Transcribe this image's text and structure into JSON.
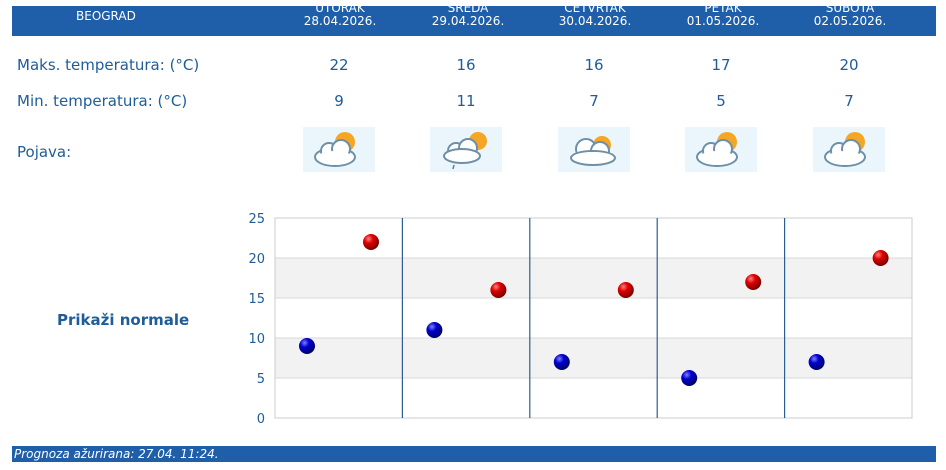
{
  "header": {
    "city": "BEOGRAD",
    "days": [
      {
        "name": "UTORAK",
        "date": "28.04.2026."
      },
      {
        "name": "SREDA",
        "date": "29.04.2026."
      },
      {
        "name": "ČETVRTAK",
        "date": "30.04.2026."
      },
      {
        "name": "PETAK",
        "date": "01.05.2026."
      },
      {
        "name": "SUBOTA",
        "date": "02.05.2026."
      }
    ]
  },
  "rows": {
    "max_label": "Maks. temperatura: (°C)",
    "min_label": "Min. temperatura: (°C)",
    "phen_label": "Pojava:",
    "max": [
      "22",
      "16",
      "16",
      "17",
      "20"
    ],
    "min": [
      "9",
      "11",
      "7",
      "5",
      "7"
    ],
    "icons": [
      "partly-cloudy-sun-icon",
      "cloud-sun-light-rain-icon",
      "cloudy-sun-icon",
      "partly-cloudy-sun-icon",
      "partly-cloudy-sun-icon"
    ]
  },
  "norm_link": "Prikaži normale",
  "footer": {
    "text": "Prognoza ažurirana:  27.04. 11:24."
  },
  "colors": {
    "header": "#1f5faa",
    "text": "#1f5c99",
    "max_marker": "#d40000",
    "min_marker": "#0000c8"
  },
  "chart_data": {
    "type": "scatter",
    "categories": [
      "28.04.2026.",
      "29.04.2026.",
      "30.04.2026.",
      "01.05.2026.",
      "02.05.2026."
    ],
    "ylim": [
      0,
      25
    ],
    "yticks": [
      "25",
      "20",
      "15",
      "10",
      "5",
      "0"
    ],
    "series": [
      {
        "values": [
          9,
          11,
          7,
          5,
          7
        ]
      },
      {
        "values": [
          22,
          16,
          16,
          17,
          20
        ]
      }
    ]
  }
}
